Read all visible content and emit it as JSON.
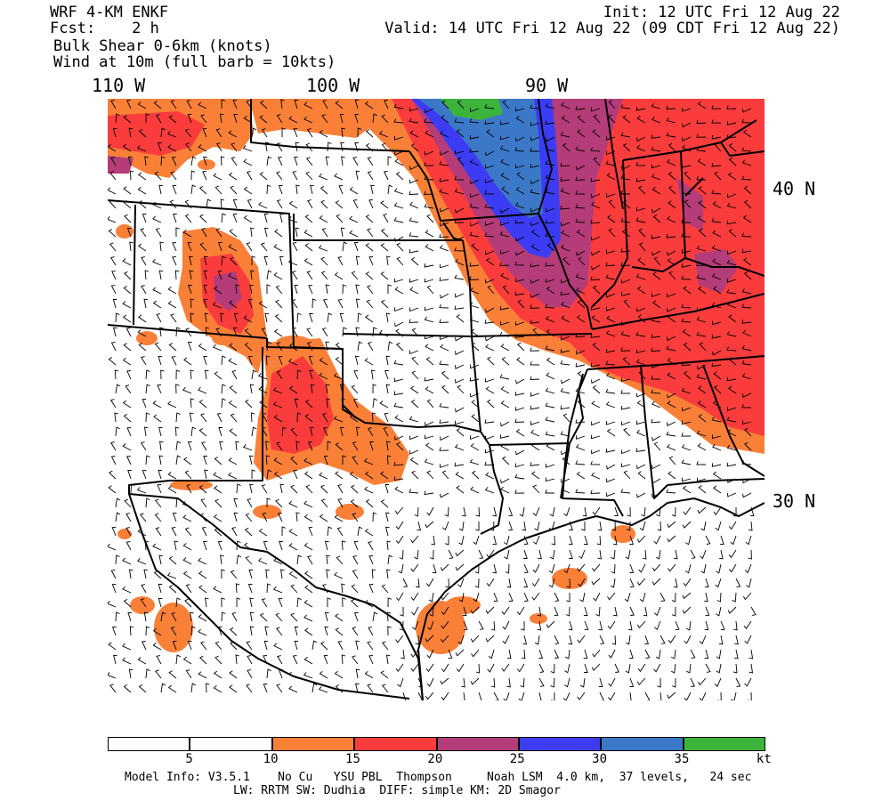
{
  "header": {
    "model": "WRF 4-KM ENKF",
    "forecast": "Fcst:    2 h",
    "field": "Bulk Shear 0-6km (knots)",
    "wind": "Wind at 10m (full barb = 10kts)",
    "init": "Init: 12 UTC Fri 12 Aug 22",
    "valid": "Valid: 14 UTC Fri 12 Aug 22 (09 CDT Fri 12 Aug 22)"
  },
  "axes": {
    "lon_labels": [
      "110 W",
      "100 W",
      "90 W"
    ],
    "lat_labels": [
      "40 N",
      "30 N"
    ]
  },
  "colorbar": {
    "colors": [
      "#ffffff",
      "#ffffff",
      "#fa8038",
      "#fa3c3c",
      "#b43c78",
      "#3c3cf5",
      "#3c78c8",
      "#3cb43c"
    ],
    "tick_labels": [
      "5",
      "10",
      "15",
      "20",
      "25",
      "30",
      "35",
      "kt"
    ]
  },
  "footer": {
    "line1": "Model Info: V3.5.1    No Cu   YSU PBL  Thompson     Noah LSM  4.0 km,  37 levels,   24 sec",
    "line2": "LW: RRTM SW: Dudhia  DIFF: simple KM: 2D Smagor"
  },
  "map": {
    "shear_colors": {
      "c10": "#fa8038",
      "c15": "#fa3c3c",
      "c20": "#b43c78",
      "c25": "#3c3cf5",
      "c30": "#3c78c8",
      "c35": "#3cb43c"
    }
  }
}
